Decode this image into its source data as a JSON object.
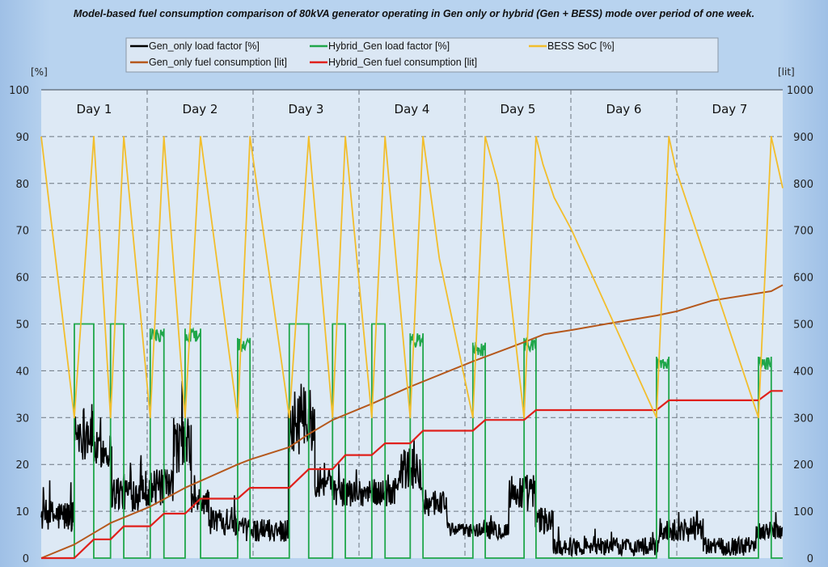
{
  "chart_data": {
    "type": "line",
    "title": "Model-based fuel consumption comparison of 80kVA generator operating in Gen only or hybrid (Gen + BESS) mode over period of one week.",
    "x_unit": "hours",
    "xlim": [
      0,
      168
    ],
    "left_axis": {
      "label": "[%]",
      "ylim": [
        0,
        100
      ],
      "ticks": [
        "0",
        "10",
        "20",
        "30",
        "40",
        "50",
        "60",
        "70",
        "80",
        "90",
        "100"
      ]
    },
    "right_axis": {
      "label": "[lit]",
      "ylim": [
        0,
        1000
      ],
      "ticks": [
        "0",
        "100",
        "200",
        "300",
        "400",
        "500",
        "600",
        "700",
        "800",
        "900",
        "1000"
      ]
    },
    "grid": true,
    "legend_position": "top",
    "day_labels": [
      "Day 1",
      "Day 2",
      "Day 3",
      "Day 4",
      "Day 5",
      "Day 6",
      "Day 7"
    ],
    "series": [
      {
        "name": "Gen_only load factor [%]",
        "color": "#000000",
        "axis": "left",
        "profile_segments": [
          [
            0,
            7.5,
            9,
            3.5
          ],
          [
            7.5,
            12,
            27,
            6
          ],
          [
            12,
            16,
            23,
            4
          ],
          [
            16,
            22,
            14,
            4
          ],
          [
            22,
            30,
            15,
            4
          ],
          [
            30,
            34,
            24,
            6
          ],
          [
            34,
            38,
            12,
            3
          ],
          [
            38,
            44,
            8,
            3
          ],
          [
            44,
            56,
            6,
            2.5
          ],
          [
            56,
            62,
            29,
            7
          ],
          [
            62,
            66,
            17,
            4
          ],
          [
            66,
            81,
            14,
            3
          ],
          [
            81,
            86,
            19,
            5
          ],
          [
            86,
            92,
            12,
            3
          ],
          [
            92,
            100,
            6,
            1.5
          ],
          [
            100,
            106,
            6,
            2
          ],
          [
            106,
            112,
            14,
            4
          ],
          [
            112,
            116,
            8,
            3
          ],
          [
            116,
            140,
            2.5,
            2
          ],
          [
            140,
            150,
            6,
            2.5
          ],
          [
            150,
            162,
            2.5,
            2
          ],
          [
            162,
            168,
            6,
            2
          ]
        ]
      },
      {
        "name": "Hybrid_Gen load factor [%]",
        "color": "#1fa64a",
        "axis": "left",
        "pulses": [
          [
            7.5,
            11.9,
            50
          ],
          [
            15.7,
            18.7,
            50
          ],
          [
            24.7,
            27.8,
            49
          ],
          [
            32.6,
            36.1,
            49
          ],
          [
            44.5,
            47.3,
            47
          ],
          [
            56.2,
            60.6,
            50
          ],
          [
            66,
            68.9,
            50
          ],
          [
            74.9,
            77.9,
            50
          ],
          [
            83.6,
            86.5,
            48
          ],
          [
            97.8,
            100.6,
            46
          ],
          [
            109.4,
            112.1,
            47
          ],
          [
            139.4,
            142.2,
            43
          ],
          [
            162.5,
            165.4,
            43
          ]
        ]
      },
      {
        "name": "BESS SoC [%]",
        "color": "#f2be2c",
        "axis": "left",
        "points": [
          [
            0,
            90
          ],
          [
            7.5,
            30
          ],
          [
            11.9,
            90
          ],
          [
            15.7,
            30
          ],
          [
            18.7,
            90
          ],
          [
            24.7,
            30
          ],
          [
            27.8,
            90
          ],
          [
            32.6,
            30
          ],
          [
            36.1,
            90
          ],
          [
            44.5,
            30
          ],
          [
            47.3,
            90
          ],
          [
            56.2,
            30
          ],
          [
            60.6,
            90
          ],
          [
            66,
            30
          ],
          [
            68.9,
            90
          ],
          [
            74.9,
            30
          ],
          [
            77.9,
            90
          ],
          [
            83.6,
            30
          ],
          [
            86.5,
            90
          ],
          [
            90.2,
            64
          ],
          [
            97.8,
            30
          ],
          [
            100.6,
            90
          ],
          [
            103.5,
            80
          ],
          [
            109.4,
            30
          ],
          [
            112.1,
            90
          ],
          [
            113.7,
            84
          ],
          [
            116.2,
            77
          ],
          [
            120.2,
            70
          ],
          [
            139.4,
            30
          ],
          [
            142.2,
            90
          ],
          [
            143.8,
            83
          ],
          [
            162.5,
            30
          ],
          [
            165.4,
            90
          ],
          [
            168,
            79
          ]
        ]
      },
      {
        "name": "Gen_only fuel consumption [lit]",
        "color": "#b5581c",
        "axis": "right",
        "points": [
          [
            0,
            0
          ],
          [
            7.5,
            29
          ],
          [
            15.7,
            75
          ],
          [
            24.7,
            110
          ],
          [
            32.6,
            150
          ],
          [
            44.5,
            200
          ],
          [
            47.5,
            211
          ],
          [
            56.2,
            237
          ],
          [
            60.6,
            265
          ],
          [
            66,
            295
          ],
          [
            75,
            330
          ],
          [
            83.6,
            366
          ],
          [
            97.8,
            420
          ],
          [
            109.4,
            461
          ],
          [
            114,
            478
          ],
          [
            120.2,
            487
          ],
          [
            128,
            500
          ],
          [
            139.4,
            518
          ],
          [
            144,
            527
          ],
          [
            152,
            550
          ],
          [
            165.4,
            570
          ],
          [
            168,
            583
          ]
        ]
      },
      {
        "name": "Hybrid_Gen fuel consumption [lit]",
        "color": "#e0201b",
        "axis": "right",
        "points": [
          [
            0,
            0
          ],
          [
            7.5,
            0
          ],
          [
            11.9,
            40
          ],
          [
            15.7,
            40
          ],
          [
            18.7,
            68
          ],
          [
            24.7,
            68
          ],
          [
            27.8,
            95
          ],
          [
            32.6,
            95
          ],
          [
            36.1,
            127
          ],
          [
            44.5,
            127
          ],
          [
            47.3,
            150
          ],
          [
            56.2,
            150
          ],
          [
            60.6,
            190
          ],
          [
            66,
            190
          ],
          [
            68.9,
            220
          ],
          [
            74.9,
            220
          ],
          [
            77.9,
            245
          ],
          [
            83.6,
            245
          ],
          [
            86.5,
            272
          ],
          [
            97.8,
            272
          ],
          [
            100.6,
            295
          ],
          [
            109.4,
            295
          ],
          [
            112.1,
            316
          ],
          [
            139.4,
            316
          ],
          [
            142.2,
            337
          ],
          [
            162.5,
            337
          ],
          [
            165.4,
            357
          ],
          [
            168,
            357
          ]
        ]
      }
    ]
  }
}
